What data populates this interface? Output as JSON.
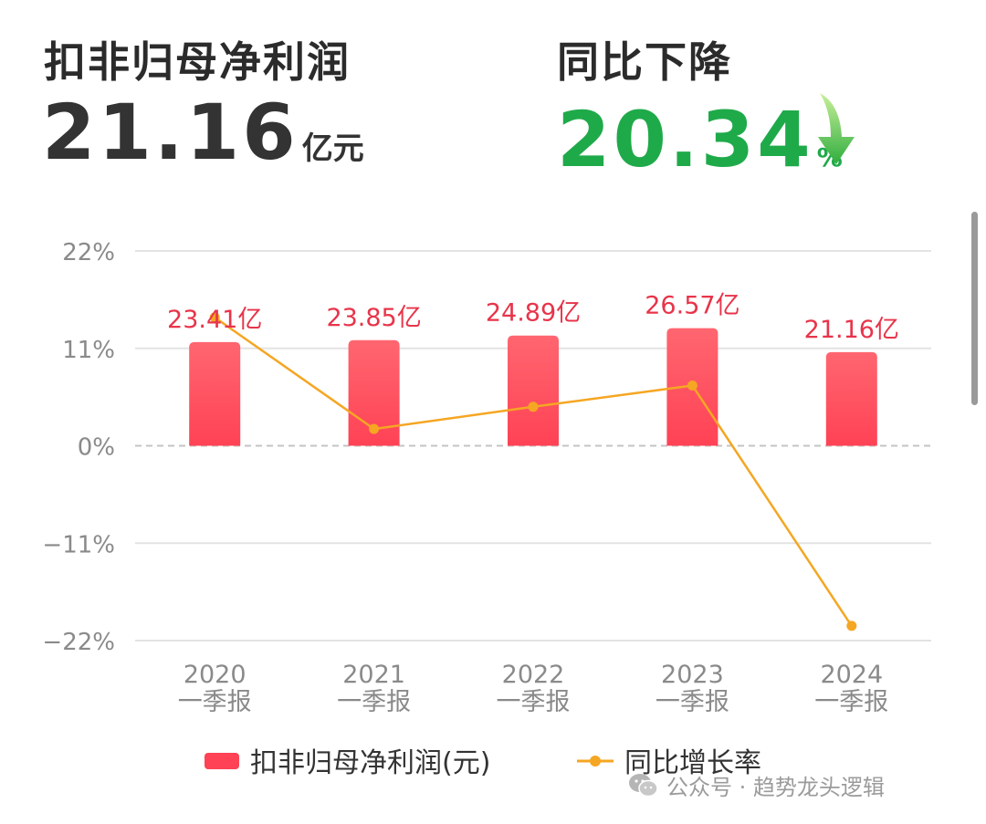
{
  "header": {
    "profit_label": "扣非归母净利润",
    "profit_value": "21.16",
    "profit_unit": "亿元",
    "yoy_label": "同比下降",
    "yoy_value": "20.34",
    "yoy_unit": "%",
    "arrow_icon": "down-arrow-icon",
    "yoy_color": "#1faa4a"
  },
  "chart_data": {
    "type": "bar",
    "categories": [
      [
        "2020",
        "一季报"
      ],
      [
        "2021",
        "一季报"
      ],
      [
        "2022",
        "一季报"
      ],
      [
        "2023",
        "一季报"
      ],
      [
        "2024",
        "一季报"
      ]
    ],
    "series": [
      {
        "name": "扣非归母净利润(元)",
        "type": "bar",
        "values": [
          23.41,
          23.85,
          24.89,
          26.57,
          21.16
        ],
        "labels": [
          "23.41亿",
          "23.85亿",
          "24.89亿",
          "26.57亿",
          "21.16亿"
        ],
        "color": "#ff4255",
        "ylim": [
          -44,
          44
        ]
      },
      {
        "name": "同比增长率",
        "type": "line",
        "values": [
          14.5,
          1.9,
          4.4,
          6.8,
          -20.34
        ],
        "color": "#f5a623",
        "ylim": [
          -22,
          22
        ]
      }
    ],
    "y_ticks": [
      {
        "value": 22,
        "label": "22%"
      },
      {
        "value": 11,
        "label": "11%"
      },
      {
        "value": 0,
        "label": "0%"
      },
      {
        "value": -11,
        "label": "−11%"
      },
      {
        "value": -22,
        "label": "−22%"
      }
    ],
    "ylim": [
      -22,
      22
    ],
    "grid": true,
    "legend_position": "bottom"
  },
  "watermark": {
    "icon": "wechat-icon",
    "text": "公众号 · 趋势龙头逻辑"
  }
}
